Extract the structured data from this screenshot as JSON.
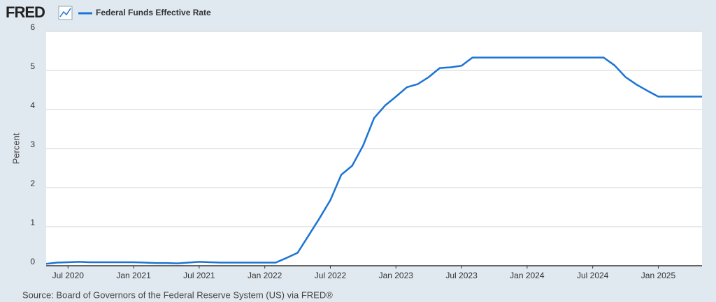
{
  "chart_data": {
    "type": "line",
    "logo": "FRED",
    "y_label": "Percent",
    "source": "Source: Board of Governors of the Federal Reserve System (US) via FRED®",
    "x": [
      "2020-05",
      "2020-06",
      "2020-07",
      "2020-08",
      "2020-09",
      "2020-10",
      "2020-11",
      "2020-12",
      "2021-01",
      "2021-02",
      "2021-03",
      "2021-04",
      "2021-05",
      "2021-06",
      "2021-07",
      "2021-08",
      "2021-09",
      "2021-10",
      "2021-11",
      "2021-12",
      "2022-01",
      "2022-02",
      "2022-03",
      "2022-04",
      "2022-05",
      "2022-06",
      "2022-07",
      "2022-08",
      "2022-09",
      "2022-10",
      "2022-11",
      "2022-12",
      "2023-01",
      "2023-02",
      "2023-03",
      "2023-04",
      "2023-05",
      "2023-06",
      "2023-07",
      "2023-08",
      "2023-09",
      "2023-10",
      "2023-11",
      "2023-12",
      "2024-01",
      "2024-02",
      "2024-03",
      "2024-04",
      "2024-05",
      "2024-06",
      "2024-07",
      "2024-08",
      "2024-09",
      "2024-10",
      "2024-11",
      "2024-12",
      "2025-01",
      "2025-02",
      "2025-03",
      "2025-04",
      "2025-05"
    ],
    "series": [
      {
        "name": "Federal Funds Effective Rate",
        "color": "#1c74d4",
        "values": [
          0.05,
          0.08,
          0.09,
          0.1,
          0.09,
          0.09,
          0.09,
          0.09,
          0.09,
          0.08,
          0.07,
          0.07,
          0.06,
          0.08,
          0.1,
          0.09,
          0.08,
          0.08,
          0.08,
          0.08,
          0.08,
          0.08,
          0.2,
          0.33,
          0.77,
          1.21,
          1.68,
          2.33,
          2.56,
          3.08,
          3.78,
          4.1,
          4.33,
          4.57,
          4.65,
          4.83,
          5.06,
          5.08,
          5.12,
          5.33,
          5.33,
          5.33,
          5.33,
          5.33,
          5.33,
          5.33,
          5.33,
          5.33,
          5.33,
          5.33,
          5.33,
          5.33,
          5.13,
          4.83,
          4.64,
          4.48,
          4.33,
          4.33,
          4.33,
          4.33,
          4.33
        ]
      }
    ],
    "xlim": [
      "2020-05",
      "2025-05"
    ],
    "xticks": [
      {
        "value": "2020-07",
        "label": "Jul 2020"
      },
      {
        "value": "2021-01",
        "label": "Jan 2021"
      },
      {
        "value": "2021-07",
        "label": "Jul 2021"
      },
      {
        "value": "2022-01",
        "label": "Jan 2022"
      },
      {
        "value": "2022-07",
        "label": "Jul 2022"
      },
      {
        "value": "2023-01",
        "label": "Jan 2023"
      },
      {
        "value": "2023-07",
        "label": "Jul 2023"
      },
      {
        "value": "2024-01",
        "label": "Jan 2024"
      },
      {
        "value": "2024-07",
        "label": "Jul 2024"
      },
      {
        "value": "2025-01",
        "label": "Jan 2025"
      }
    ],
    "ylim": [
      0,
      6
    ],
    "yticks": [
      0,
      1,
      2,
      3,
      4,
      5,
      6
    ],
    "grid": true
  }
}
